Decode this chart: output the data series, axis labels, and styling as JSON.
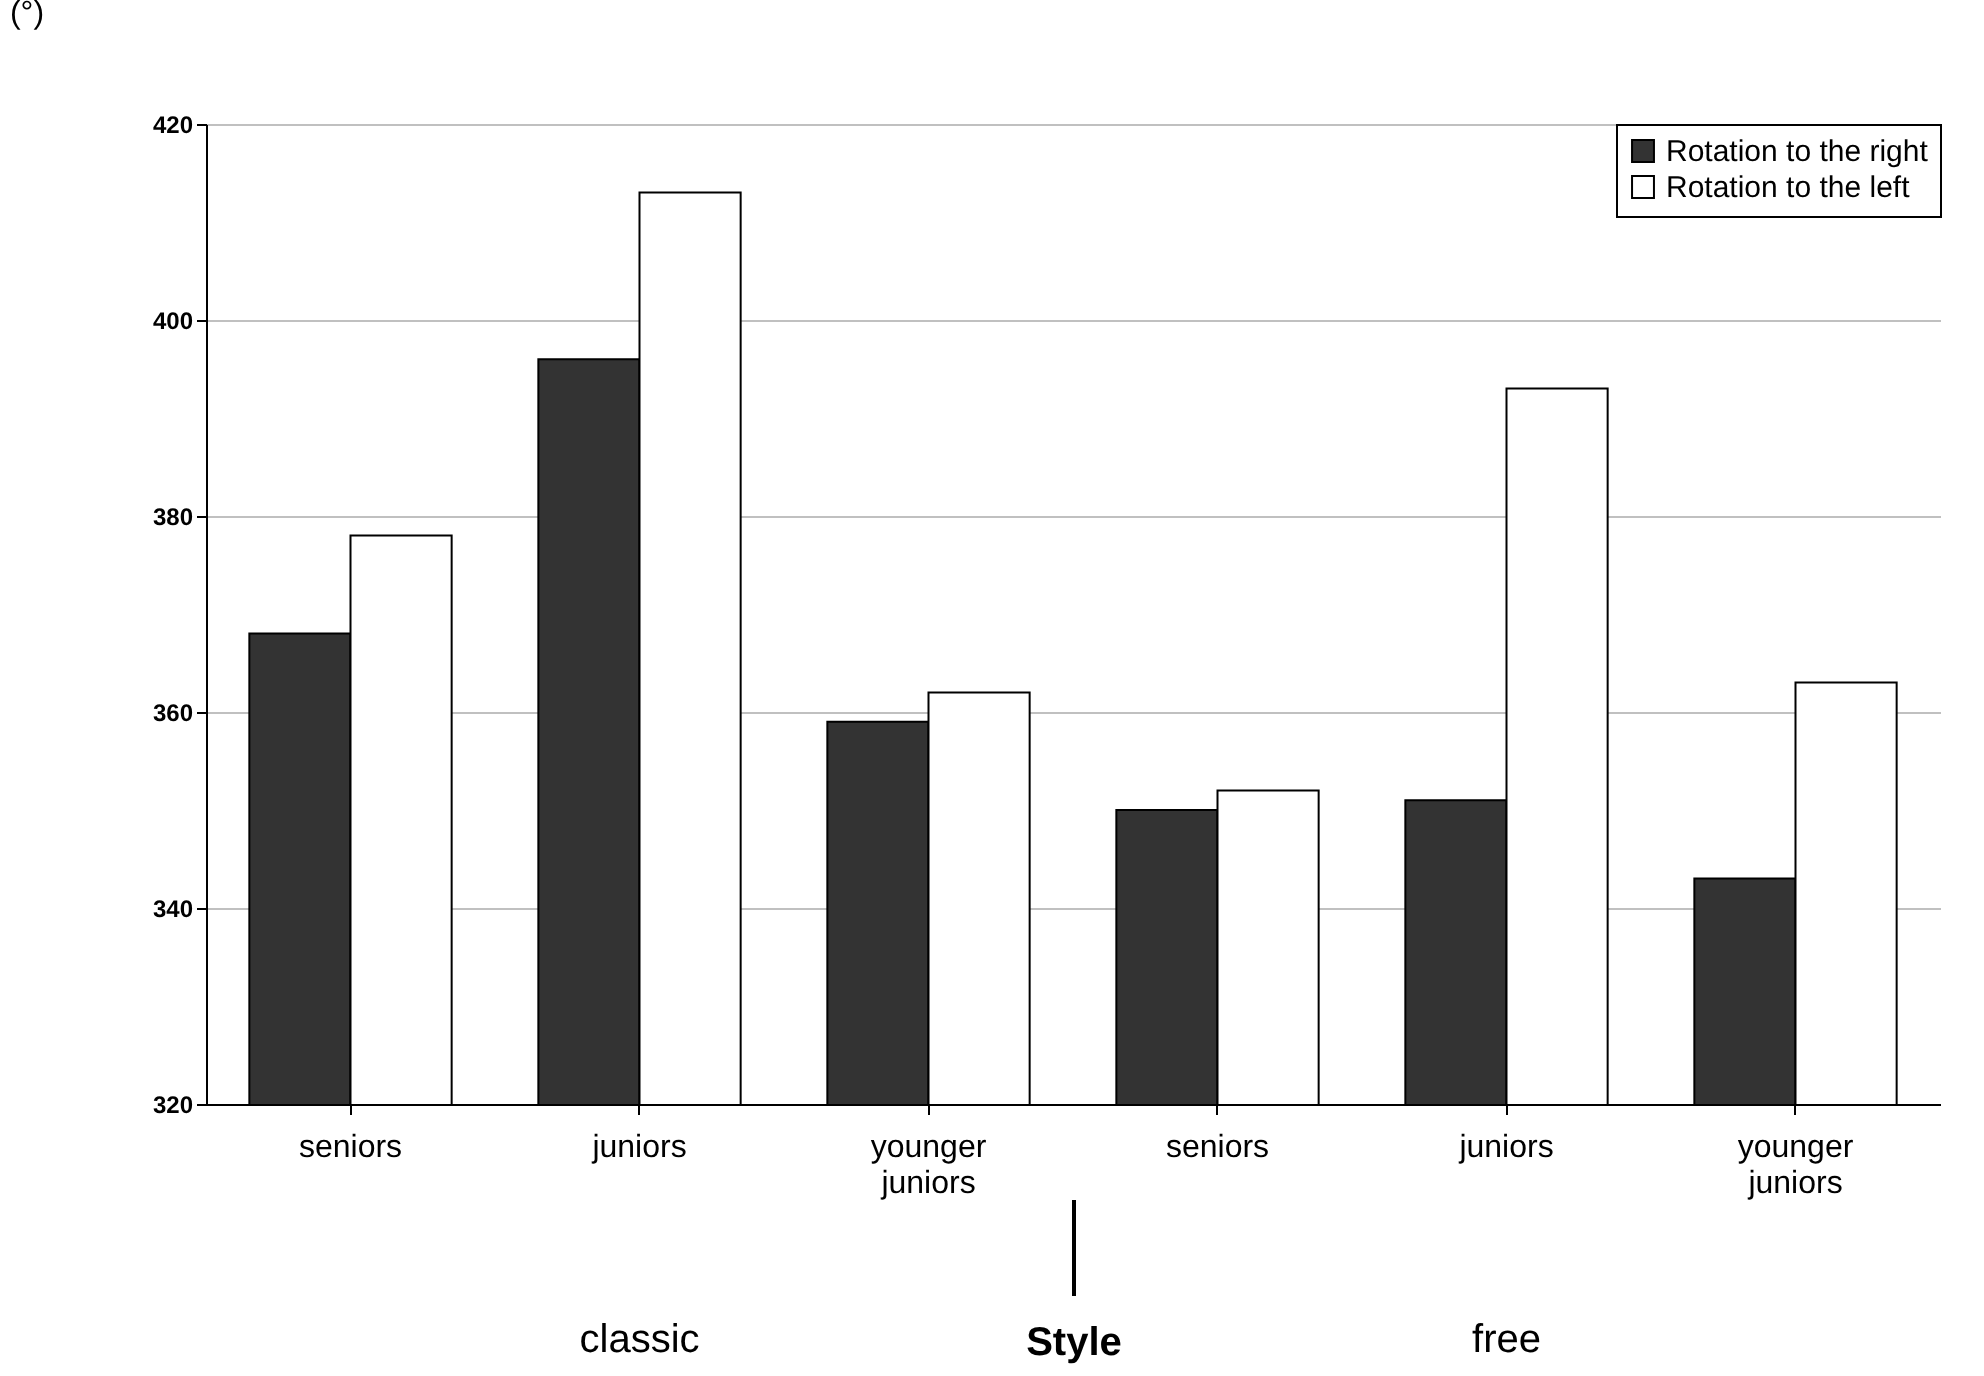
{
  "chart_data": {
    "type": "bar",
    "xlabel": "Style",
    "ylabel": "(°)",
    "categories": [
      "seniors",
      "juniors",
      "younger juniors",
      "seniors",
      "juniors",
      "younger juniors"
    ],
    "series": [
      {
        "name": "Rotation to the right",
        "color": "#333333",
        "values": [
          368,
          396,
          359,
          350,
          351,
          343
        ]
      },
      {
        "name": "Rotation to the left",
        "color": "#ffffff",
        "values": [
          378,
          413,
          362,
          352,
          393,
          363
        ]
      }
    ],
    "ylim": [
      320,
      420
    ],
    "yticks": [
      320,
      340,
      360,
      380,
      400,
      420
    ],
    "grid": "y",
    "legend": "top right",
    "annotations": [
      "classic",
      "free"
    ]
  }
}
